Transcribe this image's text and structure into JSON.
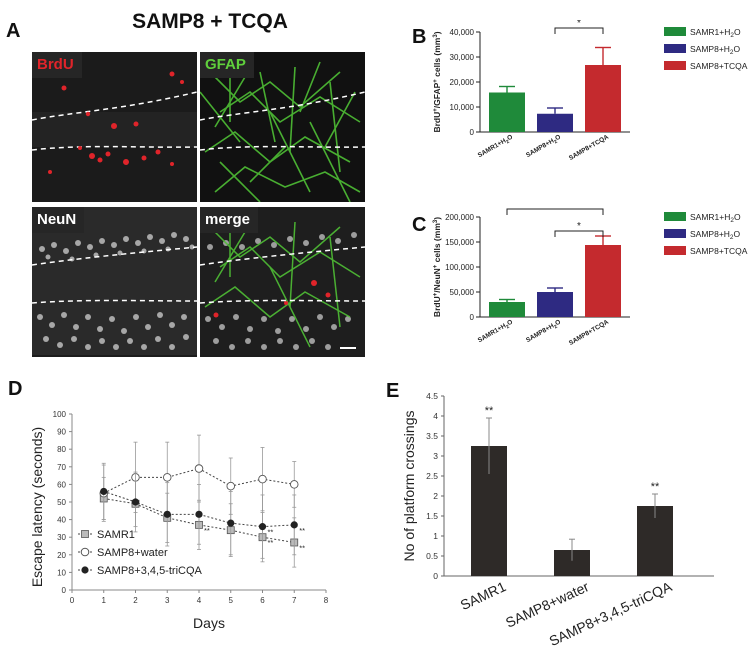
{
  "figure": {
    "title": "SAMP8 + TCQA",
    "panel_letters": [
      "A",
      "B",
      "C",
      "D",
      "E"
    ]
  },
  "micrographs": {
    "labels": [
      "BrdU",
      "GFAP",
      "NeuN",
      "merge"
    ],
    "label_colors": [
      "#e0242a",
      "#5fcf3c",
      "#ffffff",
      "#ffffff"
    ]
  },
  "chart_data": [
    {
      "id": "B",
      "type": "bar",
      "categories": [
        "SAMR1+H2O",
        "SAMP8+H2O",
        "SAMP8+TCQA"
      ],
      "values": [
        15800,
        7300,
        26800
      ],
      "errors": [
        2400,
        2300,
        7000
      ],
      "colors": [
        "#1f8a3a",
        "#2e2a82",
        "#c42a2e"
      ],
      "ylabel": "BrdU+/GFAP+ cells (mm3)",
      "ylim": [
        0,
        40000
      ],
      "yticks": [
        "0",
        "10,000",
        "20,000",
        "30,000",
        "40,000"
      ],
      "legend": [
        "SAMR1+H2O",
        "SAMP8+H2O",
        "SAMP8+TCQA"
      ],
      "significance": [
        {
          "from": 1,
          "to": 2,
          "label": "*"
        }
      ]
    },
    {
      "id": "C",
      "type": "bar",
      "categories": [
        "SAMR1+H2O",
        "SAMP8+H2O",
        "SAMP8+TCQA"
      ],
      "values": [
        30000,
        50000,
        144000
      ],
      "errors": [
        5000,
        8000,
        18000
      ],
      "colors": [
        "#1f8a3a",
        "#2e2a82",
        "#c42a2e"
      ],
      "ylabel": "BrdU+/NeuN+ cells (mm3)",
      "ylim": [
        0,
        200000
      ],
      "yticks": [
        "0",
        "50,000",
        "100,000",
        "150,000",
        "200,000"
      ],
      "legend": [
        "SAMR1+H2O",
        "SAMP8+H2O",
        "SAMP8+TCQA"
      ],
      "significance": [
        {
          "from": 0,
          "to": 2,
          "label": "*"
        },
        {
          "from": 1,
          "to": 2,
          "label": "*"
        }
      ]
    },
    {
      "id": "D",
      "type": "line",
      "xlabel": "Days",
      "ylabel": "Escape latency (seconds)",
      "xlim": [
        0,
        8
      ],
      "ylim": [
        0,
        100
      ],
      "xticks": [
        "0",
        "1",
        "2",
        "3",
        "4",
        "5",
        "6",
        "7",
        "8"
      ],
      "yticks": [
        "0",
        "10",
        "20",
        "30",
        "40",
        "50",
        "60",
        "70",
        "80",
        "90",
        "100"
      ],
      "x": [
        1,
        2,
        3,
        4,
        5,
        6,
        7
      ],
      "series": [
        {
          "name": "SAMR1",
          "marker": "square",
          "values": [
            52,
            49,
            41,
            37,
            34,
            30,
            27
          ],
          "errors": [
            12,
            13,
            14,
            14,
            15,
            14,
            14
          ],
          "sig": [
            "",
            "",
            "",
            "**",
            "",
            "**",
            "**"
          ]
        },
        {
          "name": "SAMP8+water",
          "marker": "open-circle",
          "values": [
            55,
            64,
            64,
            69,
            59,
            63,
            60
          ],
          "errors": [
            16,
            20,
            20,
            19,
            16,
            18,
            13
          ],
          "sig": [
            "",
            "",
            "",
            "",
            "",
            "",
            ""
          ]
        },
        {
          "name": "SAMP8+3,4,5-triCQA",
          "marker": "filled-circle",
          "values": [
            56,
            50,
            43,
            43,
            38,
            36,
            37
          ],
          "errors": [
            16,
            17,
            18,
            17,
            18,
            18,
            17
          ],
          "sig": [
            "",
            "",
            "",
            "",
            "",
            "**",
            "**"
          ]
        }
      ]
    },
    {
      "id": "E",
      "type": "bar",
      "categories": [
        "SAMR1",
        "SAMP8+water",
        "SAMP8+3,4,5-triCQA"
      ],
      "values": [
        3.25,
        0.65,
        1.75
      ],
      "errors": [
        0.7,
        0.27,
        0.3
      ],
      "sig": [
        "**",
        "",
        "**"
      ],
      "color": "#2e2a28",
      "ylabel": "No of platform crossings",
      "ylim": [
        0,
        4.5
      ],
      "yticks": [
        "0",
        "0.5",
        "1",
        "1.5",
        "2",
        "2.5",
        "3",
        "3.5",
        "4",
        "4.5"
      ]
    }
  ]
}
